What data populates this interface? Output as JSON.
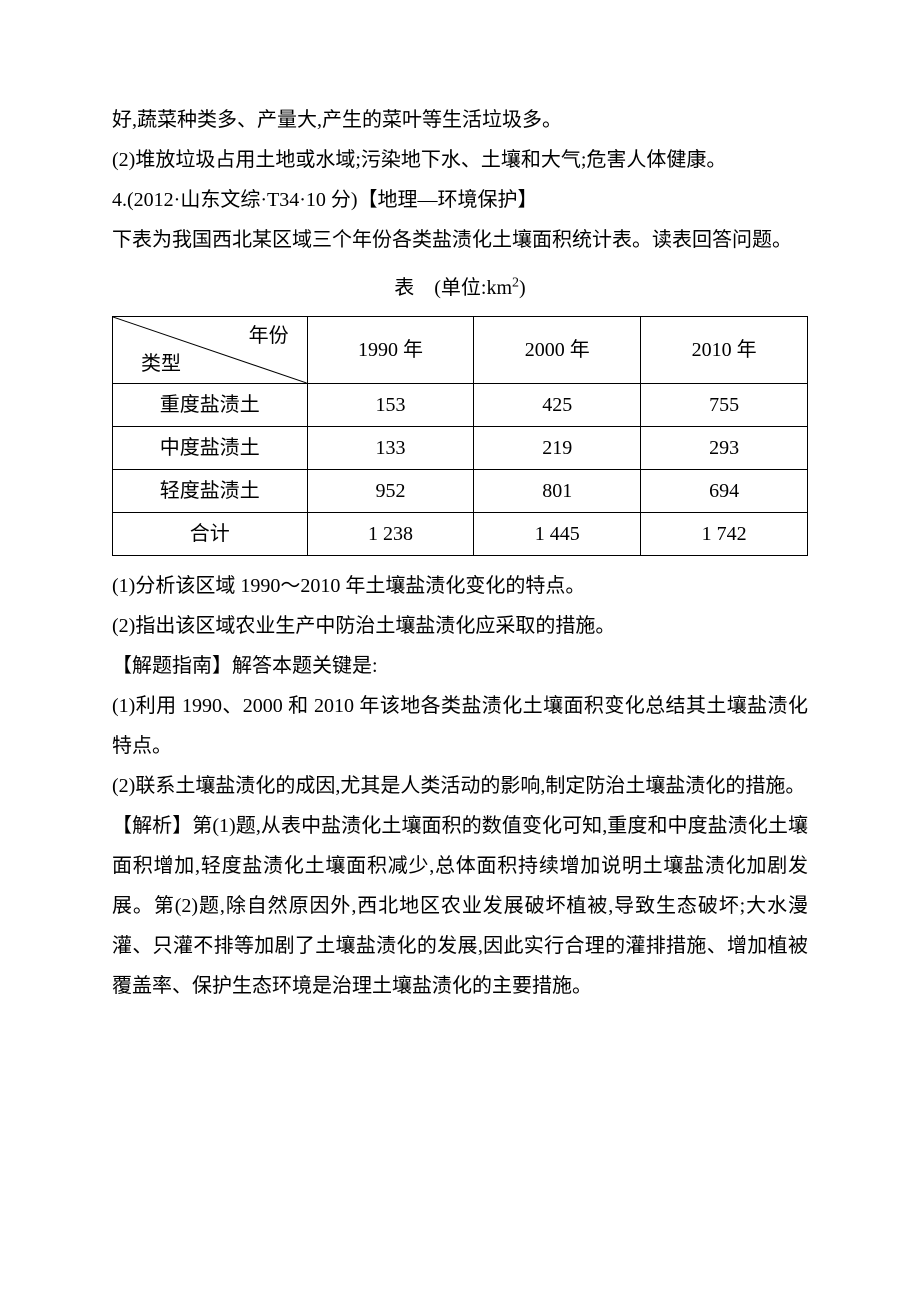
{
  "paragraphs": {
    "p1": "好,蔬菜种类多、产量大,产生的菜叶等生活垃圾多。",
    "p2": "(2)堆放垃圾占用土地或水域;污染地下水、土壤和大气;危害人体健康。",
    "p3": "4.(2012·山东文综·T34·10 分)【地理—环境保护】",
    "p4": "下表为我国西北某区域三个年份各类盐渍化土壤面积统计表。读表回答问题。",
    "caption_prefix": "表",
    "caption_unit": "(单位:km",
    "caption_unit_sup": "2",
    "caption_unit_end": ")",
    "p5": "(1)分析该区域 1990～2010 年土壤盐渍化变化的特点。",
    "p6": "(2)指出该区域农业生产中防治土壤盐渍化应采取的措施。",
    "p7": "【解题指南】解答本题关键是:",
    "p8": "(1)利用 1990、2000 和 2010 年该地各类盐渍化土壤面积变化总结其土壤盐渍化特点。",
    "p9": "(2)联系土壤盐渍化的成因,尤其是人类活动的影响,制定防治土壤盐渍化的措施。",
    "p10": "【解析】第(1)题,从表中盐渍化土壤面积的数值变化可知,重度和中度盐渍化土壤面积增加,轻度盐渍化土壤面积减少,总体面积持续增加说明土壤盐渍化加剧发展。第(2)题,除自然原因外,西北地区农业发展破坏植被,导致生态破坏;大水漫灌、只灌不排等加剧了土壤盐渍化的发展,因此实行合理的灌排措施、增加植被覆盖率、保护生态环境是治理土壤盐渍化的主要措施。"
  },
  "table": {
    "header_diag_top": "年份",
    "header_diag_bottom": "类型",
    "columns": [
      "1990 年",
      "2000 年",
      "2010 年"
    ],
    "rows": [
      {
        "label": "重度盐渍土",
        "values": [
          "153",
          "425",
          "755"
        ]
      },
      {
        "label": "中度盐渍土",
        "values": [
          "133",
          "219",
          "293"
        ]
      },
      {
        "label": "轻度盐渍土",
        "values": [
          "952",
          "801",
          "694"
        ]
      },
      {
        "label": "合计",
        "values": [
          "1 238",
          "1 445",
          "1 742"
        ]
      }
    ],
    "col_widths_pct": [
      28,
      24,
      24,
      24
    ],
    "border_color": "#000000",
    "background_color": "#ffffff",
    "font_size_pt": 15
  },
  "style": {
    "page_bg": "#ffffff",
    "text_color": "#000000",
    "body_font_size_pt": 15,
    "line_height": 2.0
  }
}
